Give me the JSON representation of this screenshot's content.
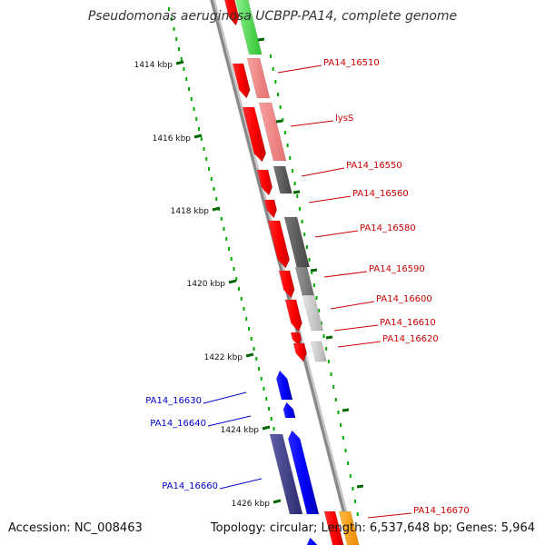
{
  "title": "Pseudomonas aeruginosa UCBPP-PA14, complete genome",
  "accession": "Accession: NC_008463",
  "topology": "Topology: circular; Length: 6,537,648 bp; Genes: 5,964",
  "kbp_ticks": [
    "1414 kbp",
    "1416 kbp",
    "1418 kbp",
    "1420 kbp",
    "1422 kbp",
    "1424 kbp",
    "1426 kbp"
  ],
  "genes": [
    {
      "label": "PA14_16510",
      "color": "#cc0000"
    },
    {
      "label": "lysS",
      "color": "#cc0000"
    },
    {
      "label": "PA14_16550",
      "color": "#cc0000"
    },
    {
      "label": "PA14_16560",
      "color": "#cc0000"
    },
    {
      "label": "PA14_16580",
      "color": "#cc0000"
    },
    {
      "label": "PA14_16590",
      "color": "#cc0000"
    },
    {
      "label": "PA14_16600",
      "color": "#cc0000"
    },
    {
      "label": "PA14_16610",
      "color": "#cc0000"
    },
    {
      "label": "PA14_16620",
      "color": "#cc0000"
    },
    {
      "label": "PA14_16630",
      "color": "#0000cc"
    },
    {
      "label": "PA14_16640",
      "color": "#0000cc"
    },
    {
      "label": "PA14_16660",
      "color": "#0000cc"
    },
    {
      "label": "PA14_16670",
      "color": "#cc0000"
    }
  ],
  "colors": {
    "forward_strand_gene": "#ff0000",
    "reverse_strand_gene": "#0000ff",
    "backbone": "#888888",
    "tick": "#006600",
    "dot": "#00aa00",
    "green_gene": "#44dd44",
    "orange_gene": "#ff9900",
    "dark_blue_gene": "#3c3c88"
  }
}
